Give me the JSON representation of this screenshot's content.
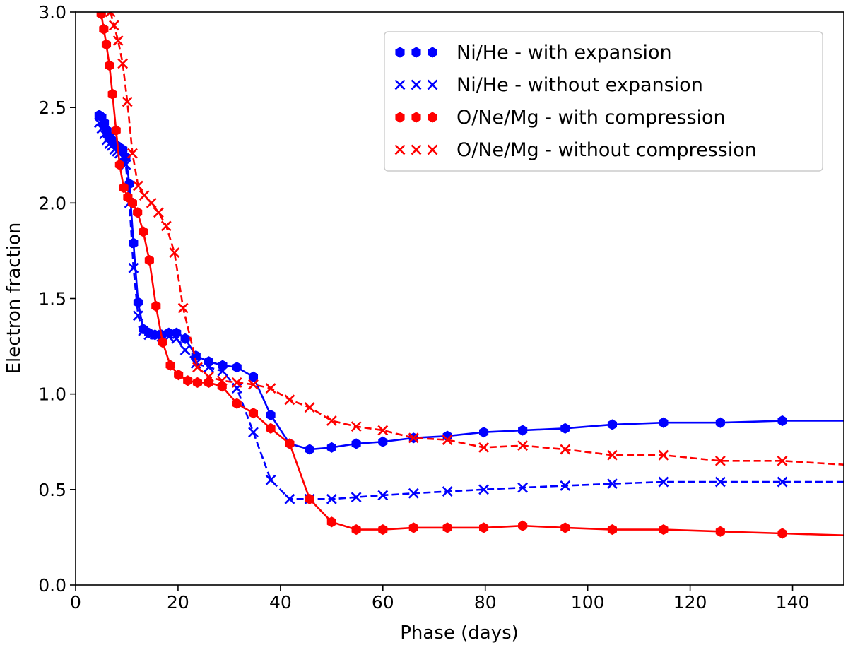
{
  "chart_data": {
    "type": "line",
    "title": "",
    "xlabel": "Phase (days)",
    "ylabel": "Electron fraction",
    "xlim": [
      0,
      150
    ],
    "ylim": [
      0,
      3.0
    ],
    "xticks": [
      0,
      20,
      40,
      60,
      80,
      100,
      120,
      140
    ],
    "yticks": [
      0.0,
      0.5,
      1.0,
      1.5,
      2.0,
      2.5,
      3.0
    ],
    "xtick_labels": [
      "0",
      "20",
      "40",
      "60",
      "80",
      "100",
      "120",
      "140"
    ],
    "ytick_labels": [
      "0.0",
      "0.5",
      "1.0",
      "1.5",
      "2.0",
      "2.5",
      "3.0"
    ],
    "grid": false,
    "legend_position": "top-right",
    "series": [
      {
        "name": "Ni/He - with expansion",
        "color": "#0000ff",
        "linestyle": "solid",
        "marker": "hexagon",
        "x": [
          4.6,
          5.1,
          5.6,
          6.1,
          6.6,
          7.1,
          7.6,
          8.1,
          8.6,
          9.2,
          9.8,
          10.5,
          11.3,
          12.2,
          13.2,
          14.3,
          15.5,
          16.8,
          18.2,
          19.7,
          21.4,
          23.5,
          26.0,
          28.7,
          31.5,
          34.7,
          38.1,
          41.8,
          45.7,
          50.0,
          54.8,
          60.0,
          66.0,
          72.6,
          79.7,
          87.3,
          95.6,
          104.8,
          114.8,
          125.9,
          138.0,
          150.0
        ],
        "y": [
          2.46,
          2.45,
          2.42,
          2.38,
          2.35,
          2.33,
          2.31,
          2.3,
          2.29,
          2.28,
          2.24,
          2.1,
          1.79,
          1.48,
          1.34,
          1.32,
          1.31,
          1.31,
          1.32,
          1.32,
          1.29,
          1.2,
          1.17,
          1.15,
          1.14,
          1.09,
          0.89,
          0.74,
          0.71,
          0.72,
          0.74,
          0.75,
          0.77,
          0.78,
          0.8,
          0.81,
          0.82,
          0.84,
          0.85,
          0.85,
          0.86,
          0.86
        ]
      },
      {
        "name": "Ni/He - without expansion",
        "color": "#0000ff",
        "linestyle": "dashed",
        "marker": "x",
        "x": [
          4.6,
          5.1,
          5.6,
          6.1,
          6.6,
          7.1,
          7.6,
          8.1,
          8.6,
          9.2,
          9.8,
          10.5,
          11.3,
          12.2,
          13.2,
          14.3,
          15.5,
          16.8,
          18.2,
          19.7,
          21.4,
          23.5,
          26.0,
          28.7,
          31.5,
          34.7,
          38.1,
          41.8,
          45.7,
          50.0,
          54.8,
          60.0,
          66.0,
          72.6,
          79.7,
          87.3,
          95.6,
          104.8,
          114.8,
          125.9,
          138.0,
          150.0
        ],
        "y": [
          2.42,
          2.39,
          2.36,
          2.33,
          2.31,
          2.3,
          2.28,
          2.27,
          2.26,
          2.24,
          2.2,
          2.0,
          1.66,
          1.41,
          1.33,
          1.31,
          1.31,
          1.3,
          1.3,
          1.29,
          1.23,
          1.16,
          1.14,
          1.12,
          1.03,
          0.8,
          0.55,
          0.45,
          0.45,
          0.45,
          0.46,
          0.47,
          0.48,
          0.49,
          0.5,
          0.51,
          0.52,
          0.53,
          0.54,
          0.54,
          0.54,
          0.54
        ]
      },
      {
        "name": "O/Ne/Mg - with compression",
        "color": "#ff0000",
        "linestyle": "solid",
        "marker": "hexagon",
        "x": [
          5.0,
          5.5,
          6.0,
          6.6,
          7.2,
          7.9,
          8.6,
          9.4,
          10.2,
          11.1,
          12.1,
          13.2,
          14.4,
          15.7,
          17.0,
          18.5,
          20.1,
          21.9,
          23.8,
          26.0,
          28.6,
          31.5,
          34.7,
          38.1,
          41.8,
          45.7,
          50.0,
          54.8,
          60.0,
          66.0,
          72.6,
          79.7,
          87.3,
          95.6,
          104.8,
          114.8,
          125.9,
          138.0,
          150.0
        ],
        "y": [
          2.99,
          2.91,
          2.83,
          2.72,
          2.57,
          2.38,
          2.2,
          2.08,
          2.03,
          2.0,
          1.95,
          1.85,
          1.7,
          1.46,
          1.27,
          1.15,
          1.1,
          1.07,
          1.06,
          1.06,
          1.04,
          0.95,
          0.9,
          0.82,
          0.74,
          0.45,
          0.33,
          0.29,
          0.29,
          0.3,
          0.3,
          0.3,
          0.31,
          0.3,
          0.29,
          0.29,
          0.28,
          0.27,
          0.26
        ]
      },
      {
        "name": "O/Ne/Mg - without compression",
        "color": "#ff0000",
        "linestyle": "dashed",
        "marker": "x",
        "x": [
          6.8,
          7.5,
          8.3,
          9.2,
          10.1,
          11.1,
          12.2,
          13.4,
          14.8,
          16.2,
          17.7,
          19.3,
          21.0,
          23.8,
          26.0,
          28.6,
          31.5,
          34.7,
          38.1,
          41.8,
          45.7,
          50.0,
          54.8,
          60.0,
          66.0,
          72.6,
          79.7,
          87.3,
          95.6,
          104.8,
          114.8,
          125.9,
          138.0,
          150.0
        ],
        "y": [
          3.0,
          2.93,
          2.85,
          2.73,
          2.53,
          2.26,
          2.09,
          2.04,
          2.0,
          1.95,
          1.88,
          1.74,
          1.45,
          1.14,
          1.09,
          1.07,
          1.06,
          1.05,
          1.03,
          0.97,
          0.93,
          0.86,
          0.83,
          0.81,
          0.77,
          0.76,
          0.72,
          0.73,
          0.71,
          0.68,
          0.68,
          0.65,
          0.65,
          0.63
        ]
      }
    ]
  }
}
